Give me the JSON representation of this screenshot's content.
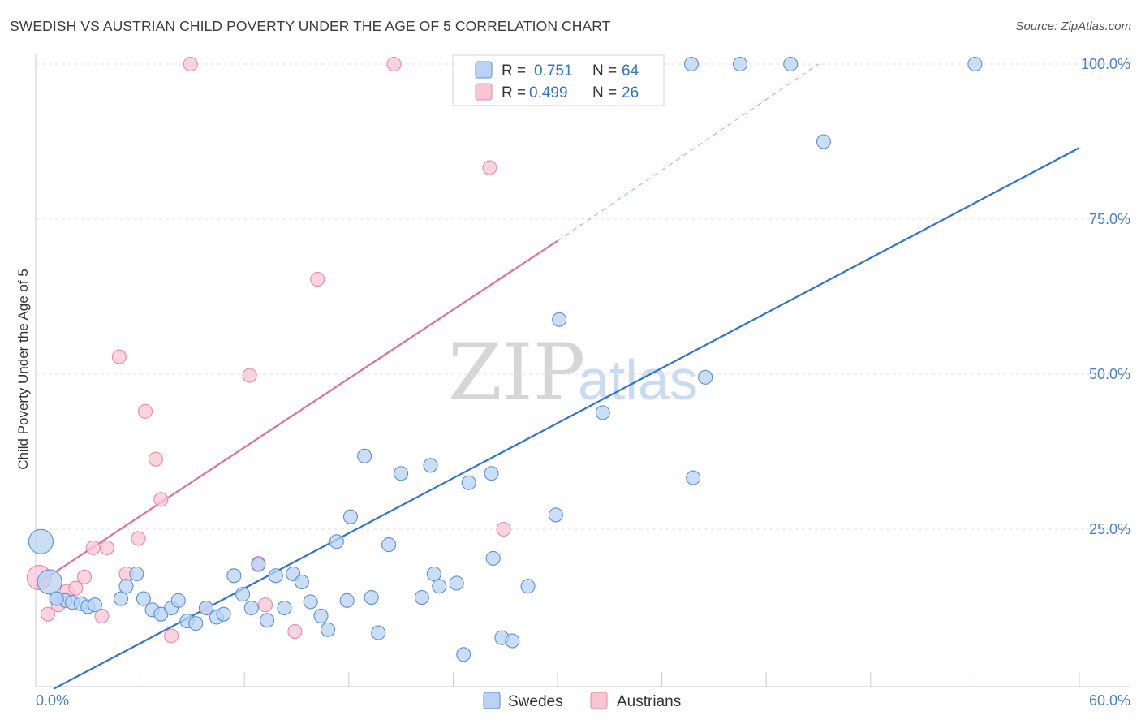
{
  "header": {
    "title": "SWEDISH VS AUSTRIAN CHILD POVERTY UNDER THE AGE OF 5 CORRELATION CHART",
    "source": "Source: ZipAtlas.com"
  },
  "watermark": {
    "zip": "ZIP",
    "atlas": "atlas"
  },
  "colors": {
    "swedes_fill": "#b8d3f4",
    "swedes_stroke": "#5b8fd6",
    "swedes_line": "#2f74cf",
    "austrians_fill": "#f9c5d5",
    "austrians_stroke": "#e58aa6",
    "austrians_line": "#e07098",
    "tick_label": "#4a7fd0",
    "grid": "#e2e2e2"
  },
  "legend": {
    "rows": [
      {
        "r_label": "R = ",
        "r_value": "0.751",
        "n_label": "N = ",
        "n_value": "64"
      },
      {
        "r_label": "R = ",
        "r_value": "0.499",
        "n_label": "N = ",
        "n_value": "26"
      }
    ]
  },
  "chart_data": {
    "type": "scatter",
    "title": "SWEDISH VS AUSTRIAN CHILD POVERTY UNDER THE AGE OF 5 CORRELATION CHART",
    "xlabel": "",
    "ylabel": "Child Poverty Under the Age of 5",
    "xlim": [
      0,
      60
    ],
    "ylim": [
      0,
      102
    ],
    "x_tick_labels": [
      "0.0%",
      "60.0%"
    ],
    "y_ticks": [
      25,
      50,
      75,
      100
    ],
    "y_tick_labels": [
      "25.0%",
      "50.0%",
      "75.0%",
      "100.0%"
    ],
    "grid": true,
    "legend_position": "top-center",
    "bottom_legend": [
      "Swedes",
      "Austrians"
    ],
    "series": [
      {
        "name": "Swedes",
        "r": 0.751,
        "n": 64,
        "trend": {
          "x0": 0,
          "y0": -0.5,
          "x1": 60,
          "y1": 86.5
        },
        "points": [
          [
            0.3,
            23.0,
            "large"
          ],
          [
            0.8,
            16.5,
            "large"
          ],
          [
            1.2,
            13.8
          ],
          [
            1.7,
            13.5
          ],
          [
            2.1,
            13.2
          ],
          [
            2.6,
            13.0
          ],
          [
            3.0,
            12.5
          ],
          [
            3.4,
            12.8
          ],
          [
            4.9,
            13.8
          ],
          [
            5.2,
            15.8
          ],
          [
            5.8,
            17.8
          ],
          [
            6.2,
            13.8
          ],
          [
            6.7,
            12.0
          ],
          [
            7.2,
            11.3
          ],
          [
            7.8,
            12.3
          ],
          [
            8.2,
            13.5
          ],
          [
            8.7,
            10.2
          ],
          [
            9.2,
            9.8
          ],
          [
            9.8,
            12.3
          ],
          [
            10.4,
            10.8
          ],
          [
            10.8,
            11.3
          ],
          [
            11.4,
            17.5
          ],
          [
            11.9,
            14.5
          ],
          [
            12.4,
            12.3
          ],
          [
            12.8,
            19.3
          ],
          [
            13.3,
            10.3
          ],
          [
            13.8,
            17.5
          ],
          [
            14.3,
            12.3
          ],
          [
            14.8,
            17.8
          ],
          [
            15.3,
            16.5
          ],
          [
            15.8,
            13.3
          ],
          [
            16.4,
            11.0
          ],
          [
            16.8,
            8.8
          ],
          [
            17.3,
            23.0
          ],
          [
            17.9,
            13.5
          ],
          [
            18.1,
            27.0
          ],
          [
            18.9,
            36.8
          ],
          [
            19.3,
            14.0
          ],
          [
            19.7,
            8.3
          ],
          [
            20.3,
            22.5
          ],
          [
            21.0,
            34.0
          ],
          [
            22.2,
            14.0
          ],
          [
            22.7,
            35.3
          ],
          [
            22.9,
            17.8
          ],
          [
            23.2,
            15.8
          ],
          [
            24.2,
            16.3
          ],
          [
            24.6,
            4.8
          ],
          [
            24.9,
            32.5
          ],
          [
            26.2,
            34.0
          ],
          [
            26.3,
            20.3
          ],
          [
            26.8,
            7.5
          ],
          [
            27.4,
            7.0
          ],
          [
            28.3,
            15.8
          ],
          [
            29.9,
            27.3
          ],
          [
            30.1,
            58.8
          ],
          [
            32.6,
            43.8
          ],
          [
            37.7,
            100.0
          ],
          [
            37.8,
            33.3
          ],
          [
            38.5,
            49.5
          ],
          [
            40.5,
            100.0
          ],
          [
            43.4,
            100.0
          ],
          [
            45.3,
            87.5
          ],
          [
            54.0,
            100.0
          ],
          [
            1.2,
            13.8
          ]
        ]
      },
      {
        "name": "Austrians",
        "r": 0.499,
        "n": 26,
        "trend": {
          "x0": 0,
          "y0": 16.0,
          "x1": 30,
          "y1": 71.5,
          "dashed_to": {
            "x": 45.0,
            "y": 100.0
          }
        },
        "points": [
          [
            0.2,
            17.2,
            "large"
          ],
          [
            0.7,
            11.3
          ],
          [
            1.3,
            12.8
          ],
          [
            1.8,
            15.0
          ],
          [
            2.3,
            15.5
          ],
          [
            2.8,
            17.3
          ],
          [
            3.3,
            22.0
          ],
          [
            3.8,
            11.0
          ],
          [
            4.1,
            22.0
          ],
          [
            4.8,
            52.8
          ],
          [
            5.2,
            17.8
          ],
          [
            5.9,
            23.5
          ],
          [
            6.3,
            44.0
          ],
          [
            6.9,
            36.3
          ],
          [
            7.2,
            29.8
          ],
          [
            7.8,
            7.8
          ],
          [
            8.9,
            100.0
          ],
          [
            9.8,
            12.3
          ],
          [
            12.3,
            49.8
          ],
          [
            12.8,
            19.5
          ],
          [
            13.2,
            12.8
          ],
          [
            14.9,
            8.5
          ],
          [
            16.2,
            65.3
          ],
          [
            20.6,
            100.0
          ],
          [
            26.1,
            83.3
          ],
          [
            26.9,
            25.0
          ]
        ]
      }
    ]
  }
}
